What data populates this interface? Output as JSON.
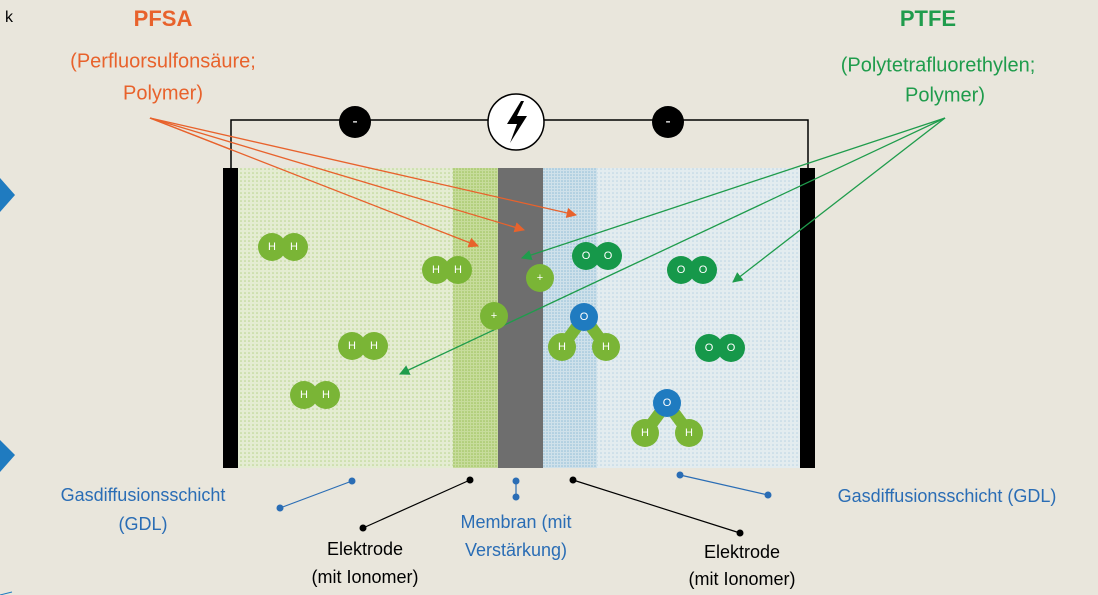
{
  "corner_text": "k",
  "pfsa": {
    "title": "PFSA",
    "subtitle": [
      "(Perfluorsulfonsäure;",
      "Polymer)"
    ]
  },
  "ptfe": {
    "title": "PTFE",
    "subtitle": [
      "(Polytetrafluorethylen;",
      "Polymer)"
    ]
  },
  "circuit": {
    "minus_left": "-",
    "minus_right": "-"
  },
  "hydrogen": [
    [
      "H",
      "H"
    ],
    [
      "H",
      "H"
    ],
    [
      "H",
      "H"
    ],
    [
      "H",
      "H"
    ]
  ],
  "oxygen": [
    [
      "O",
      "O"
    ],
    [
      "O",
      "O"
    ],
    [
      "O",
      "O"
    ]
  ],
  "protons": [
    "+",
    "+"
  ],
  "water": [
    [
      "O",
      "H",
      "H"
    ],
    [
      "O",
      "H",
      "H"
    ]
  ],
  "labels": {
    "gdl_left": [
      "Gasdiffusionsschicht",
      "(GDL)"
    ],
    "electrode_left": [
      "Elektrode",
      "(mit Ionomer)"
    ],
    "membrane": [
      "Membran (mit",
      "Verstärkung)"
    ],
    "electrode_right": [
      "Elektrode",
      "(mit Ionomer)"
    ],
    "gdl_right": "Gasdiffusionsschicht (GDL)"
  }
}
